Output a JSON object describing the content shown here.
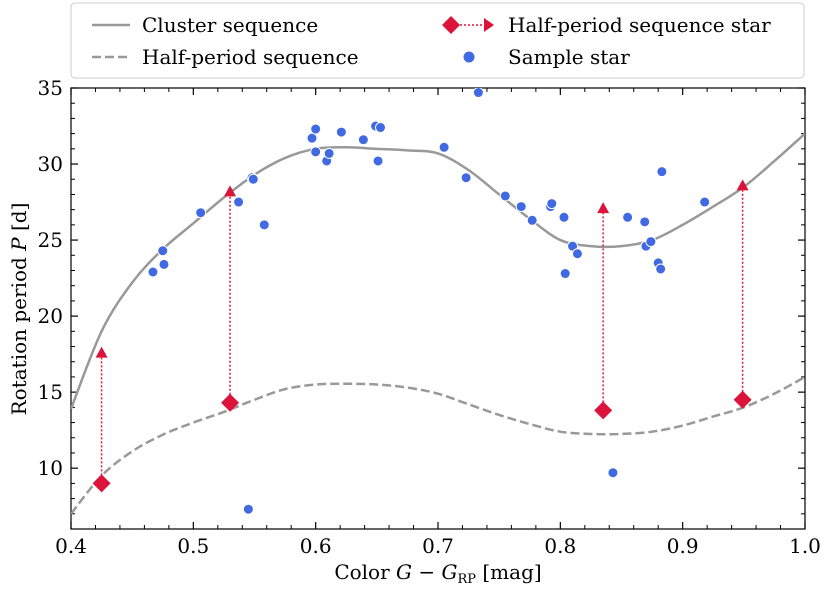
{
  "chart_data": {
    "type": "scatter",
    "xlabel": "Color G − G_RP [mag]",
    "ylabel": "Rotation period P [d]",
    "xlim": [
      0.4,
      1.0
    ],
    "ylim": [
      6,
      35
    ],
    "x_ticks": [
      0.4,
      0.5,
      0.6,
      0.7,
      0.8,
      0.9,
      1.0
    ],
    "x_tick_labels": [
      "0.4",
      "0.5",
      "0.6",
      "0.7",
      "0.8",
      "0.9",
      "1.0"
    ],
    "y_ticks": [
      10,
      15,
      20,
      25,
      30,
      35
    ],
    "y_tick_labels": [
      "10",
      "15",
      "20",
      "25",
      "30",
      "35"
    ],
    "legend": {
      "position": "top",
      "entries": [
        {
          "label": "Cluster sequence",
          "marker": "solid-line"
        },
        {
          "label": "Half-period sequence star",
          "marker": "diamond-arrow"
        },
        {
          "label": "Half-period sequence",
          "marker": "dashed-line"
        },
        {
          "label": "Sample star",
          "marker": "circle"
        }
      ]
    },
    "colors": {
      "curve": "#999999",
      "sample": "#4169e1",
      "half_period_star": "#dc143c"
    },
    "cluster_sequence": {
      "x": [
        0.4,
        0.425,
        0.45,
        0.475,
        0.5,
        0.525,
        0.55,
        0.575,
        0.6,
        0.625,
        0.65,
        0.675,
        0.7,
        0.725,
        0.75,
        0.775,
        0.8,
        0.825,
        0.85,
        0.875,
        0.9,
        0.925,
        0.95,
        0.975,
        1.0
      ],
      "y": [
        13.9,
        19.0,
        22.2,
        24.4,
        26.1,
        27.8,
        29.3,
        30.4,
        31.0,
        31.1,
        31.0,
        30.9,
        30.7,
        29.6,
        28.0,
        26.4,
        25.0,
        24.6,
        24.6,
        25.0,
        26.0,
        27.2,
        28.5,
        30.2,
        32.0
      ]
    },
    "half_period_sequence": {
      "x": [
        0.4,
        0.425,
        0.45,
        0.475,
        0.5,
        0.525,
        0.55,
        0.575,
        0.6,
        0.625,
        0.65,
        0.675,
        0.7,
        0.725,
        0.75,
        0.775,
        0.8,
        0.825,
        0.85,
        0.875,
        0.9,
        0.925,
        0.95,
        0.975,
        1.0
      ],
      "y": [
        7.0,
        9.5,
        11.1,
        12.2,
        13.0,
        13.7,
        14.5,
        15.2,
        15.5,
        15.55,
        15.5,
        15.3,
        14.9,
        14.2,
        13.5,
        12.9,
        12.4,
        12.25,
        12.25,
        12.4,
        12.8,
        13.4,
        14.0,
        14.9,
        16.0
      ]
    },
    "half_period_stars": [
      {
        "x": 0.425,
        "p_measured": 9.0,
        "p_doubled": 17.6
      },
      {
        "x": 0.53,
        "p_measured": 14.3,
        "p_doubled": 28.2
      },
      {
        "x": 0.835,
        "p_measured": 13.8,
        "p_doubled": 27.1
      },
      {
        "x": 0.949,
        "p_measured": 14.5,
        "p_doubled": 28.6
      }
    ],
    "sample_stars": [
      [
        0.467,
        22.9
      ],
      [
        0.475,
        24.3
      ],
      [
        0.476,
        23.4
      ],
      [
        0.506,
        26.8
      ],
      [
        0.537,
        27.5
      ],
      [
        0.545,
        7.3
      ],
      [
        0.548,
        29.1
      ],
      [
        0.549,
        29.0
      ],
      [
        0.558,
        26.0
      ],
      [
        0.597,
        31.7
      ],
      [
        0.6,
        32.3
      ],
      [
        0.6,
        30.8
      ],
      [
        0.609,
        30.2
      ],
      [
        0.611,
        30.7
      ],
      [
        0.621,
        32.1
      ],
      [
        0.639,
        31.6
      ],
      [
        0.649,
        32.5
      ],
      [
        0.651,
        30.2
      ],
      [
        0.653,
        32.4
      ],
      [
        0.705,
        31.1
      ],
      [
        0.723,
        29.1
      ],
      [
        0.733,
        34.7
      ],
      [
        0.755,
        27.9
      ],
      [
        0.768,
        27.2
      ],
      [
        0.777,
        26.3
      ],
      [
        0.792,
        27.2
      ],
      [
        0.793,
        27.4
      ],
      [
        0.803,
        26.5
      ],
      [
        0.804,
        22.8
      ],
      [
        0.81,
        24.6
      ],
      [
        0.814,
        24.1
      ],
      [
        0.843,
        9.7
      ],
      [
        0.855,
        26.5
      ],
      [
        0.869,
        26.2
      ],
      [
        0.87,
        24.6
      ],
      [
        0.874,
        24.9
      ],
      [
        0.88,
        23.5
      ],
      [
        0.882,
        23.1
      ],
      [
        0.883,
        29.5
      ],
      [
        0.918,
        27.5
      ]
    ]
  }
}
